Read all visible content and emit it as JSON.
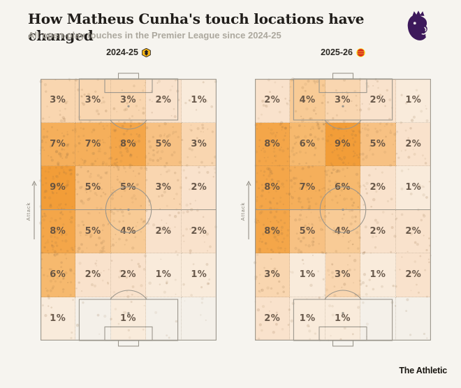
{
  "header": {
    "title": "How Matheus Cunha's touch locations have changed",
    "subtitle": "All open-play touches in the Premier League since 2024-25",
    "logo_icon": "premier-league-lion-icon"
  },
  "attack_label": "Attack",
  "footer": {
    "brand": "The Athletic"
  },
  "colors": {
    "background": "#F6F4EF",
    "title": "#201D1A",
    "subtitle": "#ACA89E",
    "pitch_line": "#9B968C",
    "value_label": "#5D4E41",
    "premier_league_purple": "#3D195B",
    "wolves_gold": "#FDB913",
    "man_utd_red": "#DA291C",
    "heat_scale": {
      "1": "#F9EBDB",
      "2": "#F9E2CC",
      "3": "#F9D6B0",
      "4": "#F8CB96",
      "5": "#F7C183",
      "6": "#F6B96E",
      "7": "#F5AF5B",
      "8": "#F4A649",
      "9": "#F29D38",
      "empty": "#F4F0E9"
    }
  },
  "chart_data": [
    {
      "type": "heatmap",
      "season": "2024-25",
      "team": "Wolverhampton Wanderers",
      "badge_icon": "wolves-crest-icon",
      "unit": "%",
      "grid": {
        "cols": 5,
        "rows": 6,
        "orientation": "attack-up"
      },
      "values_pct": [
        [
          3,
          3,
          3,
          2,
          1
        ],
        [
          7,
          7,
          8,
          5,
          3
        ],
        [
          9,
          5,
          5,
          3,
          2
        ],
        [
          8,
          5,
          4,
          2,
          2
        ],
        [
          6,
          2,
          2,
          1,
          1
        ],
        [
          1,
          null,
          1,
          null,
          null
        ]
      ]
    },
    {
      "type": "heatmap",
      "season": "2025-26",
      "team": "Manchester United",
      "badge_icon": "man-utd-crest-icon",
      "unit": "%",
      "grid": {
        "cols": 5,
        "rows": 6,
        "orientation": "attack-up"
      },
      "values_pct": [
        [
          2,
          4,
          3,
          2,
          1
        ],
        [
          8,
          6,
          9,
          5,
          2
        ],
        [
          8,
          7,
          6,
          2,
          1
        ],
        [
          8,
          5,
          4,
          2,
          2
        ],
        [
          3,
          1,
          3,
          1,
          2
        ],
        [
          2,
          1,
          1,
          null,
          null
        ]
      ]
    }
  ]
}
